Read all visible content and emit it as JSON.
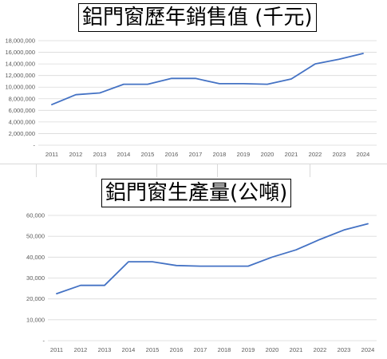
{
  "chart_data": [
    {
      "type": "line",
      "title": "鋁門窗歷年銷售值 (千元)",
      "categories": [
        "2011",
        "2012",
        "2013",
        "2014",
        "2015",
        "2016",
        "2017",
        "2018",
        "2019",
        "2020",
        "2021",
        "2022",
        "2023",
        "2024"
      ],
      "values": [
        7000000,
        8700000,
        9000000,
        10500000,
        10500000,
        11500000,
        11500000,
        10600000,
        10600000,
        10500000,
        11400000,
        14000000,
        14800000,
        15800000
      ],
      "y_ticks": [
        "-",
        "2,000,000",
        "4,000,000",
        "6,000,000",
        "8,000,000",
        "10,000,000",
        "12,000,000",
        "14,000,000",
        "16,000,000",
        "18,000,000"
      ],
      "ylim": [
        0,
        18000000
      ],
      "grid": true,
      "line_color": "#4472c4"
    },
    {
      "type": "line",
      "title": "鋁門窗生產量(公噸)",
      "categories": [
        "2011",
        "2012",
        "2013",
        "2014",
        "2015",
        "2016",
        "2017",
        "2018",
        "2019",
        "2020",
        "2021",
        "2022",
        "2023",
        "2024"
      ],
      "values": [
        22500,
        26500,
        26500,
        37800,
        37800,
        36000,
        35700,
        35700,
        35700,
        40000,
        43500,
        48500,
        53000,
        56000
      ],
      "y_ticks": [
        "-",
        "10,000",
        "20,000",
        "30,000",
        "40,000",
        "50,000",
        "60,000"
      ],
      "ylim": [
        0,
        60000
      ],
      "grid": true,
      "line_color": "#4472c4"
    }
  ]
}
